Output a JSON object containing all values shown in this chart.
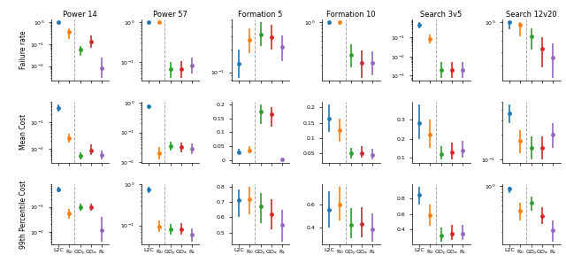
{
  "col_titles": [
    "Power 14",
    "Power 57",
    "Formation 5",
    "Formation 10",
    "Search 3v5",
    "Search 12v20"
  ],
  "row_titles": [
    "Failure rate",
    "Mean Cost",
    "99th Percentile Cost"
  ],
  "methods": [
    "L2C",
    "R_0",
    "GD_y",
    "GD_a",
    "R_L"
  ],
  "colors": [
    "#1f77b4",
    "#ff7f0e",
    "#2ca02c",
    "#d62728",
    "#9467bd"
  ],
  "method_colors": {
    "L2C": "#1f77b4",
    "R_0": "#ff7f0e",
    "GD_y": "#2ca02c",
    "GD_a": "#d62728",
    "R_L": "#9467bd"
  },
  "data": {
    "Power 14": {
      "Failure rate": {
        "L2C": {
          "val": 1.0,
          "lo": 0.9,
          "hi": 1.0
        },
        "R_0": {
          "val": 0.35,
          "lo": 0.18,
          "hi": 0.55
        },
        "GD_y": {
          "val": 0.055,
          "lo": 0.03,
          "hi": 0.085
        },
        "GD_a": {
          "val": 0.13,
          "lo": 0.07,
          "hi": 0.25
        },
        "R_L": {
          "val": 0.008,
          "lo": 0.003,
          "hi": 0.025
        }
      },
      "Mean Cost": {
        "L2C": {
          "val": 0.35,
          "lo": 0.25,
          "hi": 0.48
        },
        "R_0": {
          "val": 0.025,
          "lo": 0.018,
          "hi": 0.038
        },
        "GD_y": {
          "val": 0.0055,
          "lo": 0.004,
          "hi": 0.0075
        },
        "GD_a": {
          "val": 0.009,
          "lo": 0.006,
          "hi": 0.015
        },
        "R_L": {
          "val": 0.006,
          "lo": 0.004,
          "hi": 0.009
        }
      },
      "99th Percentile Cost": {
        "L2C": {
          "val": 0.5,
          "lo": 0.4,
          "hi": 0.65
        },
        "R_0": {
          "val": 0.055,
          "lo": 0.035,
          "hi": 0.08
        },
        "GD_y": {
          "val": 0.095,
          "lo": 0.07,
          "hi": 0.13
        },
        "GD_a": {
          "val": 0.1,
          "lo": 0.07,
          "hi": 0.14
        },
        "R_L": {
          "val": 0.012,
          "lo": 0.004,
          "hi": 0.04
        }
      }
    },
    "Power 57": {
      "Failure rate": {
        "L2C": {
          "val": 1.0,
          "lo": 0.9,
          "hi": 1.0
        },
        "R_0": {
          "val": 1.0,
          "lo": 0.9,
          "hi": 1.0
        },
        "GD_y": {
          "val": 0.065,
          "lo": 0.04,
          "hi": 0.1
        },
        "GD_a": {
          "val": 0.065,
          "lo": 0.04,
          "hi": 0.105
        },
        "R_L": {
          "val": 0.08,
          "lo": 0.05,
          "hi": 0.13
        }
      },
      "Mean Cost": {
        "L2C": {
          "val": 0.75,
          "lo": 0.6,
          "hi": 0.88
        },
        "R_0": {
          "val": 0.02,
          "lo": 0.012,
          "hi": 0.033
        },
        "GD_y": {
          "val": 0.035,
          "lo": 0.025,
          "hi": 0.048
        },
        "GD_a": {
          "val": 0.033,
          "lo": 0.022,
          "hi": 0.047
        },
        "R_L": {
          "val": 0.028,
          "lo": 0.018,
          "hi": 0.042
        }
      },
      "99th Percentile Cost": {
        "L2C": {
          "val": 0.75,
          "lo": 0.6,
          "hi": 0.88
        },
        "R_0": {
          "val": 0.095,
          "lo": 0.07,
          "hi": 0.13
        },
        "GD_y": {
          "val": 0.08,
          "lo": 0.06,
          "hi": 0.11
        },
        "GD_a": {
          "val": 0.082,
          "lo": 0.06,
          "hi": 0.112
        },
        "R_L": {
          "val": 0.06,
          "lo": 0.04,
          "hi": 0.085
        }
      }
    },
    "Formation 5": {
      "Failure rate": {
        "L2C": {
          "val": 0.13,
          "lo": 0.085,
          "hi": 0.2
        },
        "R_0": {
          "val": 0.27,
          "lo": 0.18,
          "hi": 0.38
        },
        "GD_y": {
          "val": 0.32,
          "lo": 0.22,
          "hi": 0.46
        },
        "GD_a": {
          "val": 0.29,
          "lo": 0.2,
          "hi": 0.42
        },
        "R_L": {
          "val": 0.215,
          "lo": 0.14,
          "hi": 0.31
        }
      },
      "Mean Cost": {
        "L2C": {
          "val": 0.028,
          "lo": 0.02,
          "hi": 0.04
        },
        "R_0": {
          "val": 0.035,
          "lo": 0.025,
          "hi": 0.05
        },
        "GD_y": {
          "val": 0.175,
          "lo": 0.13,
          "hi": 0.2
        },
        "GD_a": {
          "val": 0.165,
          "lo": 0.12,
          "hi": 0.19
        },
        "R_L": {
          "val": 0.002,
          "lo": 0.001,
          "hi": 0.004
        }
      },
      "99th Percentile Cost": {
        "L2C": {
          "val": 0.71,
          "lo": 0.6,
          "hi": 0.78
        },
        "R_0": {
          "val": 0.72,
          "lo": 0.62,
          "hi": 0.8
        },
        "GD_y": {
          "val": 0.67,
          "lo": 0.56,
          "hi": 0.76
        },
        "GD_a": {
          "val": 0.62,
          "lo": 0.52,
          "hi": 0.72
        },
        "R_L": {
          "val": 0.55,
          "lo": 0.44,
          "hi": 0.65
        }
      }
    },
    "Formation 10": {
      "Failure rate": {
        "L2C": {
          "val": 1.0,
          "lo": 0.92,
          "hi": 1.0
        },
        "R_0": {
          "val": 1.0,
          "lo": 0.92,
          "hi": 1.0
        },
        "GD_y": {
          "val": 0.3,
          "lo": 0.19,
          "hi": 0.44
        },
        "GD_a": {
          "val": 0.22,
          "lo": 0.13,
          "hi": 0.35
        },
        "R_L": {
          "val": 0.22,
          "lo": 0.14,
          "hi": 0.34
        }
      },
      "Mean Cost": {
        "L2C": {
          "val": 0.165,
          "lo": 0.12,
          "hi": 0.21
        },
        "R_0": {
          "val": 0.125,
          "lo": 0.09,
          "hi": 0.165
        },
        "GD_y": {
          "val": 0.05,
          "lo": 0.035,
          "hi": 0.07
        },
        "GD_a": {
          "val": 0.052,
          "lo": 0.036,
          "hi": 0.073
        },
        "R_L": {
          "val": 0.045,
          "lo": 0.03,
          "hi": 0.065
        }
      },
      "99th Percentile Cost": {
        "L2C": {
          "val": 0.55,
          "lo": 0.4,
          "hi": 0.72
        },
        "R_0": {
          "val": 0.6,
          "lo": 0.46,
          "hi": 0.76
        },
        "GD_y": {
          "val": 0.42,
          "lo": 0.3,
          "hi": 0.57
        },
        "GD_a": {
          "val": 0.43,
          "lo": 0.31,
          "hi": 0.58
        },
        "R_L": {
          "val": 0.38,
          "lo": 0.27,
          "hi": 0.52
        }
      }
    },
    "Search 3v5": {
      "Failure rate": {
        "L2C": {
          "val": 0.45,
          "lo": 0.3,
          "hi": 0.62
        },
        "R_0": {
          "val": 0.085,
          "lo": 0.05,
          "hi": 0.14
        },
        "GD_y": {
          "val": 0.002,
          "lo": 0.0008,
          "hi": 0.005
        },
        "GD_a": {
          "val": 0.002,
          "lo": 0.0008,
          "hi": 0.005
        },
        "R_L": {
          "val": 0.002,
          "lo": 0.0008,
          "hi": 0.005
        }
      },
      "Mean Cost": {
        "L2C": {
          "val": 0.28,
          "lo": 0.2,
          "hi": 0.38
        },
        "R_0": {
          "val": 0.22,
          "lo": 0.15,
          "hi": 0.3
        },
        "GD_y": {
          "val": 0.12,
          "lo": 0.09,
          "hi": 0.16
        },
        "GD_a": {
          "val": 0.13,
          "lo": 0.09,
          "hi": 0.18
        },
        "R_L": {
          "val": 0.14,
          "lo": 0.1,
          "hi": 0.19
        }
      },
      "99th Percentile Cost": {
        "L2C": {
          "val": 0.85,
          "lo": 0.72,
          "hi": 0.95
        },
        "R_0": {
          "val": 0.58,
          "lo": 0.45,
          "hi": 0.72
        },
        "GD_y": {
          "val": 0.32,
          "lo": 0.24,
          "hi": 0.42
        },
        "GD_a": {
          "val": 0.35,
          "lo": 0.27,
          "hi": 0.46
        },
        "R_L": {
          "val": 0.35,
          "lo": 0.27,
          "hi": 0.46
        }
      }
    },
    "Search 12v20": {
      "Failure rate": {
        "L2C": {
          "val": 1.0,
          "lo": 0.92,
          "hi": 1.0
        },
        "R_0": {
          "val": 0.97,
          "lo": 0.85,
          "hi": 1.0
        },
        "GD_y": {
          "val": 0.85,
          "lo": 0.72,
          "hi": 0.93
        },
        "GD_a": {
          "val": 0.73,
          "lo": 0.59,
          "hi": 0.84
        },
        "R_L": {
          "val": 0.66,
          "lo": 0.52,
          "hi": 0.78
        }
      },
      "Mean Cost": {
        "L2C": {
          "val": 0.37,
          "lo": 0.28,
          "hi": 0.47
        },
        "R_0": {
          "val": 0.17,
          "lo": 0.12,
          "hi": 0.23
        },
        "GD_y": {
          "val": 0.14,
          "lo": 0.1,
          "hi": 0.19
        },
        "GD_a": {
          "val": 0.14,
          "lo": 0.1,
          "hi": 0.19
        },
        "R_L": {
          "val": 0.2,
          "lo": 0.14,
          "hi": 0.28
        }
      },
      "99th Percentile Cost": {
        "L2C": {
          "val": 0.9,
          "lo": 0.78,
          "hi": 0.98
        },
        "R_0": {
          "val": 0.42,
          "lo": 0.3,
          "hi": 0.56
        },
        "GD_y": {
          "val": 0.55,
          "lo": 0.42,
          "hi": 0.69
        },
        "GD_a": {
          "val": 0.35,
          "lo": 0.26,
          "hi": 0.47
        },
        "R_L": {
          "val": 0.21,
          "lo": 0.14,
          "hi": 0.3
        }
      }
    }
  },
  "log_scale": {
    "Power 14": {
      "Failure rate": true,
      "Mean Cost": true,
      "99th Percentile Cost": true
    },
    "Power 57": {
      "Failure rate": true,
      "Mean Cost": true,
      "99th Percentile Cost": true
    },
    "Formation 5": {
      "Failure rate": true,
      "Mean Cost": false,
      "99th Percentile Cost": false
    },
    "Formation 10": {
      "Failure rate": true,
      "Mean Cost": false,
      "99th Percentile Cost": false
    },
    "Search 3v5": {
      "Failure rate": true,
      "Mean Cost": false,
      "99th Percentile Cost": false
    },
    "Search 12v20": {
      "Failure rate": true,
      "Mean Cost": true,
      "99th Percentile Cost": true
    }
  }
}
